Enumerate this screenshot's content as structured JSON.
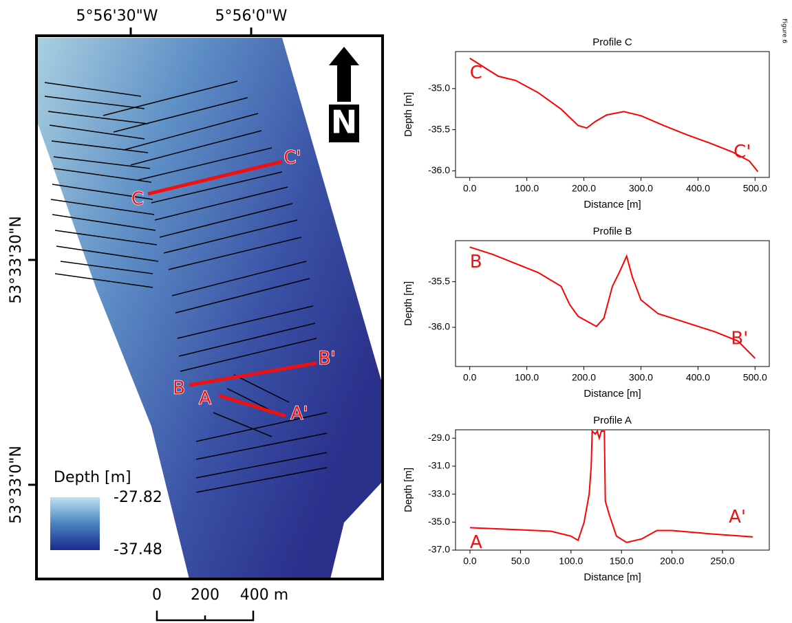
{
  "map": {
    "lon_labels": [
      "5°56'30\"W",
      "5°56'0\"W"
    ],
    "lat_labels": [
      "53°33'30\"N",
      "53°33'0\"N"
    ],
    "legend_title": "Depth [m]",
    "legend_max": "-27.82",
    "legend_min": "-37.48",
    "north": "N",
    "scale_labels": [
      "0",
      "200",
      "400 m"
    ],
    "profile_labels": [
      "C",
      "C'",
      "B",
      "B'",
      "A",
      "A'"
    ]
  },
  "figure_label": "Figure 6",
  "chart_data": [
    {
      "type": "line",
      "title": "Profile C",
      "xlabel": "Distance [m]",
      "ylabel": "Depth [m]",
      "color": "#ff0000",
      "annotations": [
        "C",
        "C'"
      ],
      "x": [
        0,
        50,
        80,
        120,
        160,
        190,
        205,
        220,
        240,
        270,
        300,
        340,
        380,
        420,
        460,
        490,
        505
      ],
      "values": [
        -34.63,
        -34.85,
        -34.9,
        -35.05,
        -35.25,
        -35.45,
        -35.48,
        -35.4,
        -35.32,
        -35.28,
        -35.33,
        -35.45,
        -35.56,
        -35.66,
        -35.77,
        -35.88,
        -36.01
      ],
      "xlim": [
        -25,
        525
      ],
      "ylim": [
        -36.08,
        -34.55
      ],
      "xticks": [
        {
          "value": 0,
          "label": "0.0"
        },
        {
          "value": 100,
          "label": "100.0"
        },
        {
          "value": 200,
          "label": "200.0"
        },
        {
          "value": 300,
          "label": "300.0"
        },
        {
          "value": 400,
          "label": "400.0"
        },
        {
          "value": 500,
          "label": "500.0"
        }
      ],
      "yticks": [
        {
          "value": -35,
          "label": "-35.0"
        },
        {
          "value": -35.5,
          "label": "-35.5"
        },
        {
          "value": -36,
          "label": "-36.0"
        }
      ]
    },
    {
      "type": "line",
      "title": "Profile B",
      "xlabel": "Distance [m]",
      "ylabel": "Depth [m]",
      "color": "#ff0000",
      "annotations": [
        "B",
        "B'"
      ],
      "x": [
        0,
        40,
        80,
        120,
        160,
        175,
        190,
        210,
        222,
        235,
        250,
        262,
        275,
        285,
        300,
        330,
        380,
        430,
        470,
        500
      ],
      "values": [
        -35.12,
        -35.2,
        -35.3,
        -35.4,
        -35.55,
        -35.75,
        -35.88,
        -35.95,
        -35.99,
        -35.9,
        -35.55,
        -35.4,
        -35.22,
        -35.45,
        -35.7,
        -35.85,
        -35.95,
        -36.05,
        -36.15,
        -36.34
      ],
      "xlim": [
        -25,
        525
      ],
      "ylim": [
        -36.43,
        -35.05
      ],
      "xticks": [
        {
          "value": 0,
          "label": "0.0"
        },
        {
          "value": 100,
          "label": "100.0"
        },
        {
          "value": 200,
          "label": "200.0"
        },
        {
          "value": 300,
          "label": "300.0"
        },
        {
          "value": 400,
          "label": "400.0"
        },
        {
          "value": 500,
          "label": "500.0"
        }
      ],
      "yticks": [
        {
          "value": -35.5,
          "label": "-35.5"
        },
        {
          "value": -36,
          "label": "-36.0"
        }
      ]
    },
    {
      "type": "line",
      "title": "Profile A",
      "xlabel": "Distance [m]",
      "ylabel": "Depth [m]",
      "color": "#ff0000",
      "annotations": [
        "A",
        "A'"
      ],
      "x": [
        0,
        50,
        80,
        100,
        107,
        113,
        118,
        120,
        121,
        124,
        126,
        128,
        130,
        133,
        134,
        138,
        145,
        155,
        170,
        185,
        200,
        240,
        280
      ],
      "values": [
        -35.4,
        -35.55,
        -35.65,
        -36.0,
        -36.3,
        -35.0,
        -33.0,
        -31.0,
        -28.5,
        -28.7,
        -28.5,
        -29.0,
        -28.5,
        -28.5,
        -33.5,
        -34.5,
        -36.0,
        -36.45,
        -36.2,
        -35.6,
        -35.6,
        -35.85,
        -36.05
      ],
      "xlim": [
        -14.3,
        296.3
      ],
      "ylim": [
        -37.0,
        -28.4
      ],
      "xticks": [
        {
          "value": 0,
          "label": "0.0"
        },
        {
          "value": 50,
          "label": "50.0"
        },
        {
          "value": 100,
          "label": "100.0"
        },
        {
          "value": 150,
          "label": "150.0"
        },
        {
          "value": 200,
          "label": "200.0"
        },
        {
          "value": 250,
          "label": "250.0"
        }
      ],
      "yticks": [
        {
          "value": -29,
          "label": "-29.0"
        },
        {
          "value": -31,
          "label": "-31.0"
        },
        {
          "value": -33,
          "label": "-33.0"
        },
        {
          "value": -35,
          "label": "-35.0"
        },
        {
          "value": -37,
          "label": "-37.0"
        }
      ]
    }
  ]
}
